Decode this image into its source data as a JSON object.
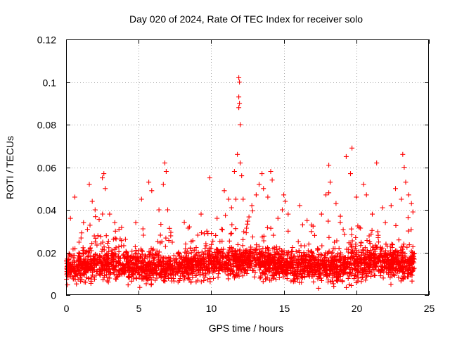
{
  "chart_data": {
    "type": "scatter",
    "title": "Day 020 of 2024, Rate Of TEC Index for receiver solo",
    "xlabel": "GPS time / hours",
    "ylabel": "ROTI / TECUs",
    "xlim": [
      0,
      25
    ],
    "ylim": [
      0,
      0.12
    ],
    "x_ticks": [
      0,
      5,
      10,
      15,
      20,
      25
    ],
    "y_ticks": [
      0,
      0.02,
      0.04,
      0.06,
      0.08,
      0.1,
      0.12
    ],
    "x_tick_labels": [
      "0",
      "5",
      "10",
      "15",
      "20",
      "25"
    ],
    "y_tick_labels": [
      "0",
      "0.02",
      "0.04",
      "0.06",
      "0.08",
      "0.1",
      "0.12"
    ],
    "grid": true,
    "marker": "+",
    "series_color": "#ff0000",
    "series": [
      {
        "name": "ROTI",
        "band_points_count": 3000,
        "band_time_range": [
          0,
          24
        ],
        "band_baseline_roti": 0.013,
        "outliers": [
          {
            "x": 0.3,
            "y": 0.036
          },
          {
            "x": 0.6,
            "y": 0.046
          },
          {
            "x": 1.2,
            "y": 0.034
          },
          {
            "x": 1.6,
            "y": 0.052
          },
          {
            "x": 1.8,
            "y": 0.044
          },
          {
            "x": 2.0,
            "y": 0.04
          },
          {
            "x": 2.5,
            "y": 0.055
          },
          {
            "x": 2.6,
            "y": 0.057
          },
          {
            "x": 2.7,
            "y": 0.05
          },
          {
            "x": 3.0,
            "y": 0.038
          },
          {
            "x": 3.4,
            "y": 0.03
          },
          {
            "x": 4.8,
            "y": 0.034
          },
          {
            "x": 5.2,
            "y": 0.045
          },
          {
            "x": 5.7,
            "y": 0.053
          },
          {
            "x": 5.9,
            "y": 0.049
          },
          {
            "x": 6.4,
            "y": 0.04
          },
          {
            "x": 6.7,
            "y": 0.052
          },
          {
            "x": 6.8,
            "y": 0.062
          },
          {
            "x": 6.9,
            "y": 0.058
          },
          {
            "x": 7.0,
            "y": 0.04
          },
          {
            "x": 8.5,
            "y": 0.032
          },
          {
            "x": 9.3,
            "y": 0.038
          },
          {
            "x": 9.7,
            "y": 0.03
          },
          {
            "x": 9.9,
            "y": 0.055
          },
          {
            "x": 10.4,
            "y": 0.036
          },
          {
            "x": 10.9,
            "y": 0.049
          },
          {
            "x": 11.2,
            "y": 0.045
          },
          {
            "x": 11.4,
            "y": 0.041
          },
          {
            "x": 11.6,
            "y": 0.058
          },
          {
            "x": 11.7,
            "y": 0.045
          },
          {
            "x": 11.8,
            "y": 0.066
          },
          {
            "x": 11.9,
            "y": 0.102
          },
          {
            "x": 11.95,
            "y": 0.1
          },
          {
            "x": 11.9,
            "y": 0.093
          },
          {
            "x": 11.95,
            "y": 0.09
          },
          {
            "x": 11.9,
            "y": 0.088
          },
          {
            "x": 12.0,
            "y": 0.08
          },
          {
            "x": 12.0,
            "y": 0.062
          },
          {
            "x": 12.1,
            "y": 0.056
          },
          {
            "x": 12.2,
            "y": 0.045
          },
          {
            "x": 12.8,
            "y": 0.042
          },
          {
            "x": 13.1,
            "y": 0.047
          },
          {
            "x": 13.3,
            "y": 0.052
          },
          {
            "x": 13.5,
            "y": 0.057
          },
          {
            "x": 13.6,
            "y": 0.05
          },
          {
            "x": 13.9,
            "y": 0.046
          },
          {
            "x": 14.1,
            "y": 0.058
          },
          {
            "x": 14.2,
            "y": 0.054
          },
          {
            "x": 14.6,
            "y": 0.036
          },
          {
            "x": 14.9,
            "y": 0.04
          },
          {
            "x": 15.0,
            "y": 0.047
          },
          {
            "x": 15.1,
            "y": 0.044
          },
          {
            "x": 15.3,
            "y": 0.038
          },
          {
            "x": 16.1,
            "y": 0.042
          },
          {
            "x": 16.3,
            "y": 0.033
          },
          {
            "x": 17.6,
            "y": 0.038
          },
          {
            "x": 17.9,
            "y": 0.047
          },
          {
            "x": 18.1,
            "y": 0.061
          },
          {
            "x": 18.2,
            "y": 0.053
          },
          {
            "x": 18.1,
            "y": 0.048
          },
          {
            "x": 18.6,
            "y": 0.043
          },
          {
            "x": 18.9,
            "y": 0.037
          },
          {
            "x": 19.3,
            "y": 0.065
          },
          {
            "x": 19.6,
            "y": 0.057
          },
          {
            "x": 19.7,
            "y": 0.069
          },
          {
            "x": 20.0,
            "y": 0.046
          },
          {
            "x": 20.5,
            "y": 0.052
          },
          {
            "x": 20.7,
            "y": 0.047
          },
          {
            "x": 21.1,
            "y": 0.038
          },
          {
            "x": 21.4,
            "y": 0.062
          },
          {
            "x": 21.8,
            "y": 0.041
          },
          {
            "x": 22.0,
            "y": 0.034
          },
          {
            "x": 22.4,
            "y": 0.042
          },
          {
            "x": 22.7,
            "y": 0.05
          },
          {
            "x": 23.1,
            "y": 0.045
          },
          {
            "x": 23.2,
            "y": 0.066
          },
          {
            "x": 23.3,
            "y": 0.06
          },
          {
            "x": 23.4,
            "y": 0.053
          },
          {
            "x": 23.6,
            "y": 0.047
          },
          {
            "x": 23.8,
            "y": 0.043
          },
          {
            "x": 23.9,
            "y": 0.039
          }
        ]
      }
    ]
  }
}
